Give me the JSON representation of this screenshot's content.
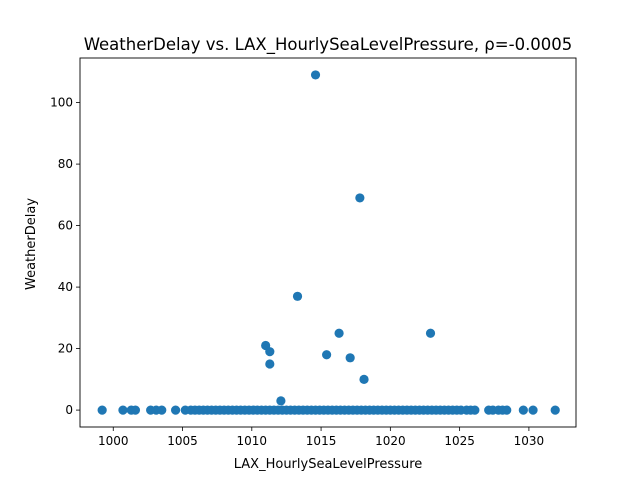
{
  "chart_data": {
    "type": "scatter",
    "title": "WeatherDelay vs. LAX_HourlySeaLevelPressure, ρ=-0.0005",
    "xlabel": "LAX_HourlySeaLevelPressure",
    "ylabel": "WeatherDelay",
    "xlim": [
      997.6,
      1033.4
    ],
    "ylim": [
      -5.5,
      114.5
    ],
    "xticks": [
      1000,
      1005,
      1010,
      1015,
      1020,
      1025,
      1030
    ],
    "yticks": [
      0,
      20,
      40,
      60,
      80,
      100
    ],
    "grid": false,
    "legend": "none",
    "color": "#1f77b4",
    "zero_row_x": [
      999.2,
      1000.7,
      1001.3,
      1001.6,
      1002.7,
      1003.1,
      1003.5,
      1004.5,
      1005.2,
      1005.6,
      1005.9,
      1006.2,
      1006.5,
      1006.8,
      1007.1,
      1007.4,
      1007.7,
      1008.0,
      1008.3,
      1008.6,
      1008.9,
      1009.2,
      1009.5,
      1009.8,
      1010.1,
      1010.4,
      1010.7,
      1011.0,
      1011.3,
      1011.6,
      1011.9,
      1012.2,
      1012.5,
      1012.8,
      1013.1,
      1013.4,
      1013.7,
      1014.0,
      1014.3,
      1014.6,
      1014.9,
      1015.2,
      1015.5,
      1015.8,
      1016.1,
      1016.4,
      1016.7,
      1017.0,
      1017.3,
      1017.6,
      1017.9,
      1018.2,
      1018.5,
      1018.8,
      1019.1,
      1019.4,
      1019.7,
      1020.0,
      1020.3,
      1020.6,
      1020.9,
      1021.2,
      1021.5,
      1021.8,
      1022.1,
      1022.4,
      1022.7,
      1023.0,
      1023.3,
      1023.6,
      1023.9,
      1024.2,
      1024.5,
      1024.8,
      1025.1,
      1025.5,
      1025.8,
      1026.1,
      1027.1,
      1027.4,
      1027.8,
      1028.1,
      1028.4,
      1029.6,
      1030.3,
      1031.9
    ],
    "points": [
      {
        "x": 1014.6,
        "y": 109
      },
      {
        "x": 1017.8,
        "y": 69
      },
      {
        "x": 1013.3,
        "y": 37
      },
      {
        "x": 1016.3,
        "y": 25
      },
      {
        "x": 1022.9,
        "y": 25
      },
      {
        "x": 1011.0,
        "y": 21
      },
      {
        "x": 1011.3,
        "y": 19
      },
      {
        "x": 1015.4,
        "y": 18
      },
      {
        "x": 1017.1,
        "y": 17
      },
      {
        "x": 1011.3,
        "y": 15
      },
      {
        "x": 1018.1,
        "y": 10
      },
      {
        "x": 1012.1,
        "y": 3
      }
    ]
  }
}
